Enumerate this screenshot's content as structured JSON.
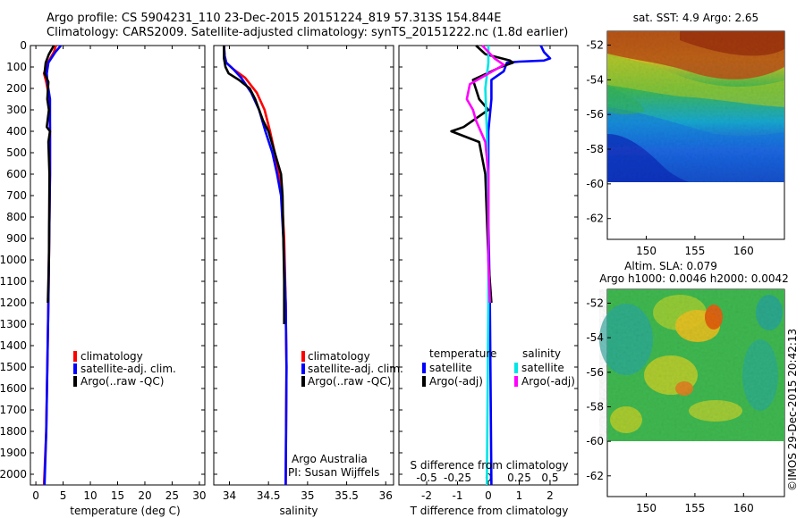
{
  "title_line1": "Argo profile: CS 5904231_110 23-Dec-2015 20151224_819 57.313S 154.844E",
  "title_line2": "Climatology: CARS2009. Satellite-adjusted climatology: synTS_20151222.nc (1.8d earlier)",
  "colors": {
    "climatology": "#ff0000",
    "satellite": "#0000ff",
    "argo": "#000000",
    "sat_salinity": "#00e5e5",
    "argo_salinity": "#ff00ff"
  },
  "legend_labels": {
    "climatology": "climatology",
    "satellite": "satellite-adj. clim.",
    "argo": "Argo(..raw -QC)"
  },
  "diff_legend": {
    "temperature_header": "temperature",
    "salinity_header": "salinity",
    "satellite": "satellite",
    "argo": "Argo(-adj)"
  },
  "credit_lines": [
    "Argo Australia",
    "PI: Susan Wijffels"
  ],
  "map_sst": {
    "title": "sat. SST: 4.9 Argo: 2.65",
    "x_ticks": [
      "150",
      "155",
      "160"
    ],
    "y_ticks": [
      "-52",
      "-54",
      "-56",
      "-58",
      "-60",
      "-62"
    ]
  },
  "map_sla": {
    "title_line1": "Altim. SLA: 0.079",
    "title_line2": "Argo h1000: 0.0046 h2000: 0.0042",
    "x_ticks": [
      "150",
      "155",
      "160"
    ],
    "y_ticks": [
      "-52",
      "-54",
      "-56",
      "-58",
      "-60",
      "-62"
    ]
  },
  "watermark": "©IMOS 29-Dec-2015 20:42:13",
  "chart_data": [
    {
      "type": "line",
      "xlabel": "temperature (deg C)",
      "ylabel": "",
      "xlim": [
        -1,
        31
      ],
      "ylim": [
        2050,
        0
      ],
      "y_reversed": true,
      "x_ticks": [
        "0",
        "5",
        "10",
        "15",
        "20",
        "25",
        "30"
      ],
      "y_ticks": [
        "0",
        "100",
        "200",
        "300",
        "400",
        "500",
        "600",
        "700",
        "800",
        "900",
        "1000",
        "1100",
        "1200",
        "1300",
        "1400",
        "1500",
        "1600",
        "1700",
        "1800",
        "1900",
        "2000"
      ],
      "series": [
        {
          "name": "climatology",
          "color_key": "climatology",
          "points": [
            [
              3.7,
              0
            ],
            [
              3.3,
              30
            ],
            [
              2.2,
              80
            ],
            [
              1.5,
              130
            ],
            [
              1.9,
              170
            ],
            [
              2.5,
              250
            ],
            [
              2.6,
              400
            ],
            [
              2.6,
              600
            ],
            [
              2.5,
              800
            ],
            [
              2.4,
              1000
            ],
            [
              2.3,
              1200
            ],
            [
              2.1,
              1500
            ],
            [
              1.9,
              1800
            ],
            [
              1.5,
              2050
            ]
          ]
        },
        {
          "name": "satellite-adj. clim.",
          "color_key": "satellite",
          "points": [
            [
              4.6,
              0
            ],
            [
              3.6,
              30
            ],
            [
              2.3,
              80
            ],
            [
              2.0,
              130
            ],
            [
              2.1,
              170
            ],
            [
              2.6,
              250
            ],
            [
              2.6,
              400
            ],
            [
              2.6,
              600
            ],
            [
              2.5,
              800
            ],
            [
              2.4,
              1000
            ],
            [
              2.3,
              1200
            ],
            [
              2.1,
              1500
            ],
            [
              1.9,
              1800
            ],
            [
              1.6,
              2050
            ]
          ]
        },
        {
          "name": "Argo(..raw -QC)",
          "color_key": "argo",
          "points": [
            [
              3.3,
              0
            ],
            [
              2.4,
              40
            ],
            [
              1.8,
              80
            ],
            [
              1.6,
              130
            ],
            [
              2.3,
              170
            ],
            [
              2.1,
              250
            ],
            [
              2.4,
              300
            ],
            [
              2.0,
              380
            ],
            [
              2.6,
              400
            ],
            [
              2.3,
              450
            ],
            [
              2.5,
              600
            ],
            [
              2.4,
              1000
            ],
            [
              2.2,
              1200
            ]
          ]
        }
      ]
    },
    {
      "type": "line",
      "xlabel": "salinity",
      "ylabel": "",
      "xlim": [
        33.8,
        36.1
      ],
      "ylim": [
        2050,
        0
      ],
      "y_reversed": true,
      "x_ticks": [
        "34",
        "34.5",
        "35",
        "35.5",
        "36"
      ],
      "y_ticks": [],
      "series": [
        {
          "name": "climatology",
          "color_key": "climatology",
          "points": [
            [
              33.93,
              0
            ],
            [
              33.94,
              50
            ],
            [
              33.96,
              80
            ],
            [
              34.05,
              110
            ],
            [
              34.2,
              150
            ],
            [
              34.35,
              220
            ],
            [
              34.45,
              300
            ],
            [
              34.52,
              400
            ],
            [
              34.58,
              500
            ],
            [
              34.63,
              600
            ],
            [
              34.67,
              700
            ],
            [
              34.7,
              900
            ],
            [
              34.72,
              1200
            ],
            [
              34.73,
              1500
            ],
            [
              34.72,
              2050
            ]
          ]
        },
        {
          "name": "satellite-adj. clim.",
          "color_key": "satellite",
          "points": [
            [
              33.93,
              0
            ],
            [
              33.94,
              50
            ],
            [
              33.96,
              80
            ],
            [
              34.05,
              110
            ],
            [
              34.15,
              150
            ],
            [
              34.28,
              220
            ],
            [
              34.38,
              300
            ],
            [
              34.46,
              400
            ],
            [
              34.55,
              500
            ],
            [
              34.61,
              600
            ],
            [
              34.66,
              700
            ],
            [
              34.69,
              900
            ],
            [
              34.72,
              1200
            ],
            [
              34.73,
              1500
            ],
            [
              34.72,
              2050
            ]
          ]
        },
        {
          "name": "Argo(..raw -QC)",
          "color_key": "argo",
          "points": [
            [
              33.93,
              0
            ],
            [
              33.93,
              60
            ],
            [
              33.95,
              100
            ],
            [
              33.99,
              130
            ],
            [
              34.12,
              160
            ],
            [
              34.26,
              200
            ],
            [
              34.33,
              250
            ],
            [
              34.38,
              300
            ],
            [
              34.43,
              350
            ],
            [
              34.5,
              400
            ],
            [
              34.58,
              500
            ],
            [
              34.66,
              600
            ],
            [
              34.68,
              700
            ],
            [
              34.69,
              900
            ],
            [
              34.7,
              1100
            ],
            [
              34.7,
              1300
            ]
          ]
        }
      ]
    },
    {
      "type": "line",
      "xlabel": "T difference from climatology",
      "xlabel2": "S difference from climatology",
      "ylabel": "",
      "xlim": [
        -2.9,
        2.9
      ],
      "ylim": [
        2050,
        0
      ],
      "y_reversed": true,
      "x_ticks": [
        "-2",
        "-1",
        "0",
        "1",
        "2"
      ],
      "s_ticks": [
        {
          "value": -2,
          "label": "-0.5"
        },
        {
          "value": -1,
          "label": "-0.25"
        },
        {
          "value": 0,
          "label": "0"
        },
        {
          "value": 1,
          "label": "0.25"
        },
        {
          "value": 2,
          "label": "0.5"
        }
      ],
      "y_ticks": [],
      "series": [
        {
          "name": "temperature satellite",
          "color_key": "satellite",
          "points": [
            [
              1.7,
              0
            ],
            [
              1.8,
              30
            ],
            [
              2.0,
              60
            ],
            [
              1.8,
              70
            ],
            [
              1.0,
              75
            ],
            [
              0.6,
              80
            ],
            [
              0.5,
              120
            ],
            [
              0.1,
              160
            ],
            [
              0.1,
              250
            ],
            [
              0.0,
              400
            ],
            [
              0.0,
              800
            ],
            [
              0.05,
              1200
            ],
            [
              0.1,
              2050
            ]
          ]
        },
        {
          "name": "temperature Argo(-adj)",
          "color_key": "argo",
          "points": [
            [
              -0.4,
              0
            ],
            [
              -0.1,
              40
            ],
            [
              0.7,
              70
            ],
            [
              0.8,
              80
            ],
            [
              0.4,
              100
            ],
            [
              -0.5,
              160
            ],
            [
              -0.3,
              250
            ],
            [
              0.0,
              300
            ],
            [
              -0.8,
              380
            ],
            [
              -1.2,
              400
            ],
            [
              -0.3,
              450
            ],
            [
              -0.1,
              600
            ],
            [
              0.0,
              1000
            ],
            [
              0.1,
              1200
            ]
          ]
        },
        {
          "name": "salinity satellite",
          "color_key": "sat_salinity",
          "points": [
            [
              0.0,
              0
            ],
            [
              0.0,
              80
            ],
            [
              -0.1,
              200
            ],
            [
              -0.05,
              400
            ],
            [
              0.0,
              800
            ],
            [
              0.0,
              1200
            ],
            [
              -0.05,
              2050
            ]
          ]
        },
        {
          "name": "salinity Argo(-adj)",
          "color_key": "argo_salinity",
          "points": [
            [
              -0.2,
              0
            ],
            [
              0.2,
              60
            ],
            [
              0.5,
              90
            ],
            [
              -0.6,
              180
            ],
            [
              -0.7,
              250
            ],
            [
              -0.5,
              300
            ],
            [
              -0.4,
              350
            ],
            [
              -0.1,
              450
            ],
            [
              0.0,
              600
            ],
            [
              0.0,
              1000
            ],
            [
              0.05,
              1200
            ]
          ]
        }
      ]
    }
  ]
}
